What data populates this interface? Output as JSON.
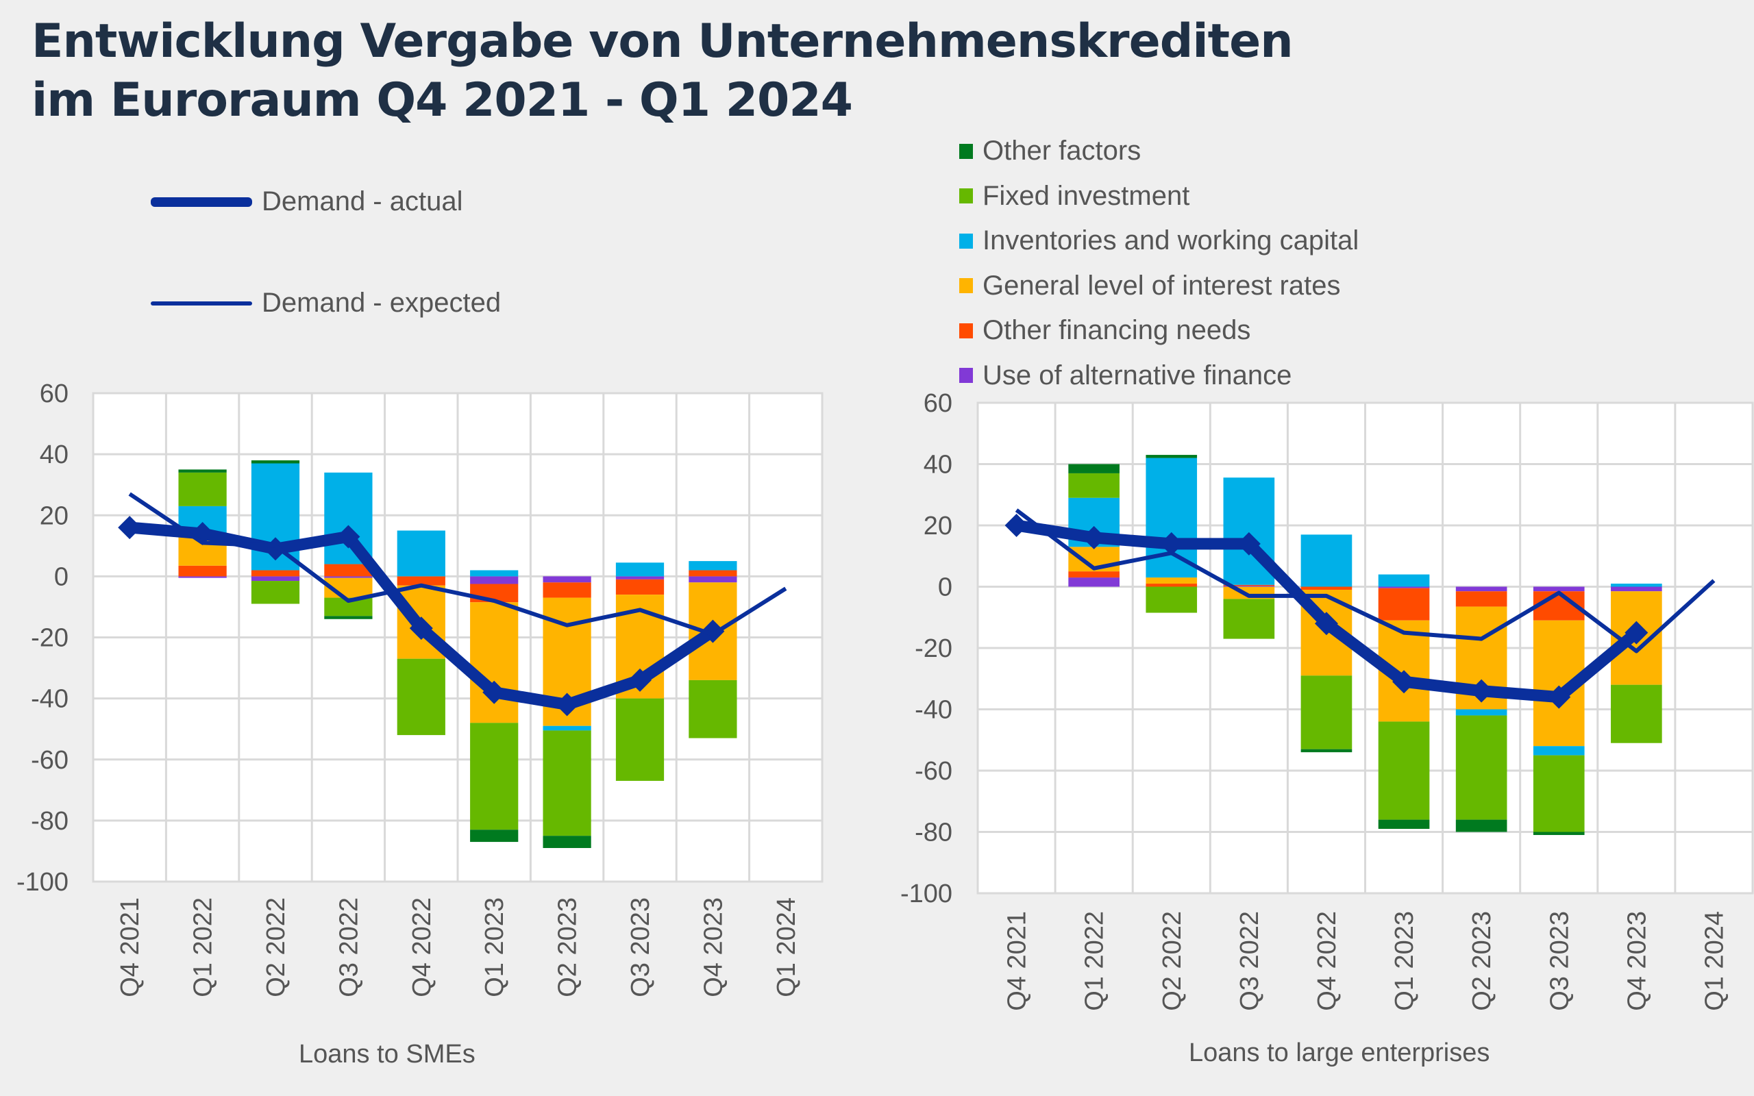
{
  "title": {
    "line1": "Entwicklung Vergabe von Unternehmenskrediten",
    "line2": "im Euroraum Q4 2021 - Q1 2024"
  },
  "line_legend": [
    {
      "label": "Demand - actual",
      "style": "thick-with-marker"
    },
    {
      "label": "Demand - expected",
      "style": "thin"
    }
  ],
  "bar_legend": [
    {
      "key": "other_factors",
      "label": "Other factors",
      "color": "#007a1f"
    },
    {
      "key": "fixed_investment",
      "label": "Fixed investment",
      "color": "#66b800"
    },
    {
      "key": "inventories",
      "label": "Inventories and working capital",
      "color": "#00b0e8"
    },
    {
      "key": "interest_rates",
      "label": "General level of interest rates",
      "color": "#ffb400"
    },
    {
      "key": "other_financing",
      "label": "Other financing needs",
      "color": "#ff4b00"
    },
    {
      "key": "alt_finance",
      "label": "Use of alternative finance",
      "color": "#8139d6"
    }
  ],
  "line_color": "#0a2f9c",
  "chart_data": [
    {
      "type": "bar",
      "stacked": true,
      "title": "",
      "xlabel": "Loans to SMEs",
      "ylabel": "",
      "ylim": [
        -100,
        60
      ],
      "yticks": [
        "60",
        "40",
        "20",
        "0",
        "-20",
        "-40",
        "-60",
        "-80",
        "-100"
      ],
      "ytick_values": [
        60,
        40,
        20,
        0,
        -20,
        -40,
        -60,
        -80,
        -100
      ],
      "grid": true,
      "categories": [
        "Q4 2021",
        "Q1 2022",
        "Q2 2022",
        "Q3 2022",
        "Q4 2022",
        "Q1 2023",
        "Q2 2023",
        "Q3 2023",
        "Q4 2023",
        "Q1 2024"
      ],
      "series": [
        {
          "name": "Use of alternative finance",
          "key": "alt_finance",
          "values": [
            null,
            -0.5,
            -1.5,
            -0.5,
            0,
            -2.5,
            -2,
            -1,
            -2,
            null
          ]
        },
        {
          "name": "Other financing needs",
          "key": "other_financing",
          "values": [
            null,
            3.5,
            2,
            4,
            -3,
            -6,
            -5,
            -5,
            2,
            null
          ]
        },
        {
          "name": "General level of interest rates",
          "key": "interest_rates",
          "values": [
            null,
            9.5,
            0,
            -6.5,
            -24,
            -39.5,
            -42,
            -34,
            -32,
            null
          ]
        },
        {
          "name": "Inventories and working capital",
          "key": "inventories",
          "values": [
            null,
            10,
            35,
            30,
            15,
            2,
            -1.5,
            4.5,
            3,
            null
          ]
        },
        {
          "name": "Fixed investment",
          "key": "fixed_investment",
          "values": [
            null,
            11,
            -7.5,
            -6,
            -25,
            -35,
            -34.5,
            -27,
            -19,
            null
          ]
        },
        {
          "name": "Other factors",
          "key": "other_factors",
          "values": [
            null,
            1,
            1,
            -1,
            0,
            -4,
            -4,
            0,
            0,
            null
          ]
        }
      ],
      "lines": [
        {
          "name": "Demand - actual",
          "values": [
            16,
            14,
            9,
            13,
            -17,
            -38,
            -42,
            -34,
            -18,
            null
          ]
        },
        {
          "name": "Demand - expected",
          "values": [
            27,
            11,
            10,
            -8,
            -3,
            -8,
            -16,
            -11,
            -19,
            -4
          ]
        }
      ]
    },
    {
      "type": "bar",
      "stacked": true,
      "title": "",
      "xlabel": "Loans to large enterprises",
      "ylabel": "",
      "ylim": [
        -100,
        60
      ],
      "yticks": [
        "60",
        "40",
        "20",
        "0",
        "-20",
        "-40",
        "-60",
        "-80",
        "-100"
      ],
      "ytick_values": [
        60,
        40,
        20,
        0,
        -20,
        -40,
        -60,
        -80,
        -100
      ],
      "grid": true,
      "categories": [
        "Q4 2021",
        "Q1 2022",
        "Q2 2022",
        "Q3 2022",
        "Q4 2022",
        "Q1 2023",
        "Q2 2023",
        "Q3 2023",
        "Q4 2023",
        "Q1 2024"
      ],
      "series": [
        {
          "name": "Use of alternative finance",
          "key": "alt_finance",
          "values": [
            null,
            3,
            0,
            0.3,
            0,
            -0.5,
            -1.5,
            -1.5,
            -1.5,
            null
          ]
        },
        {
          "name": "Other financing needs",
          "key": "other_financing",
          "values": [
            null,
            2,
            1,
            0.3,
            -1,
            -10.5,
            -5,
            -9.5,
            0,
            null
          ]
        },
        {
          "name": "General level of interest rates",
          "key": "interest_rates",
          "values": [
            null,
            8,
            2,
            -4,
            -28,
            -33,
            -33.5,
            -41,
            -30.5,
            null
          ]
        },
        {
          "name": "Inventories and working capital",
          "key": "inventories",
          "values": [
            null,
            16,
            39,
            35,
            17,
            4,
            -2,
            -3,
            1,
            null
          ]
        },
        {
          "name": "Fixed investment",
          "key": "fixed_investment",
          "values": [
            null,
            8,
            -8.5,
            -13,
            -24,
            -32,
            -34,
            -25,
            -19,
            null
          ]
        },
        {
          "name": "Other factors",
          "key": "other_factors",
          "values": [
            null,
            3,
            1,
            0,
            -1,
            -3,
            -4,
            -1,
            0,
            null
          ]
        }
      ],
      "lines": [
        {
          "name": "Demand - actual",
          "values": [
            20,
            16,
            14,
            14,
            -12,
            -31,
            -34,
            -36,
            -15,
            null
          ]
        },
        {
          "name": "Demand - expected",
          "values": [
            25,
            6,
            11,
            -3,
            -3,
            -15,
            -17,
            -2,
            -21,
            2
          ]
        }
      ]
    }
  ]
}
